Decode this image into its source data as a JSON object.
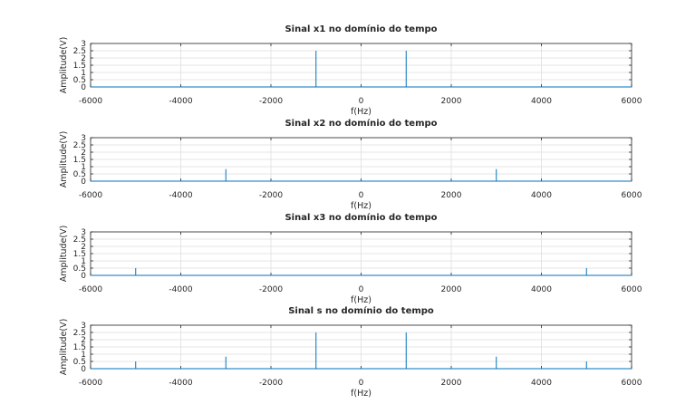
{
  "chart_data": [
    {
      "type": "stem",
      "title": "Sinal x1 no domínio do tempo",
      "xlabel": "f(Hz)",
      "ylabel": "Amplitude(V)",
      "xlim": [
        -6000,
        6000
      ],
      "ylim": [
        0,
        3
      ],
      "xticks": [
        "-6000",
        "-4000",
        "-2000",
        "0",
        "2000",
        "4000",
        "6000"
      ],
      "yticks": [
        "0",
        "0.5",
        "1",
        "1.5",
        "2",
        "2.5",
        "3"
      ],
      "grid": true,
      "color": "#0072bd",
      "x": [
        -1000,
        1000
      ],
      "y": [
        2.5,
        2.5
      ]
    },
    {
      "type": "stem",
      "title": "Sinal x2 no domínio do tempo",
      "xlabel": "f(Hz)",
      "ylabel": "Amplitude(V)",
      "xlim": [
        -6000,
        6000
      ],
      "ylim": [
        0,
        3
      ],
      "xticks": [
        "-6000",
        "-4000",
        "-2000",
        "0",
        "2000",
        "4000",
        "6000"
      ],
      "yticks": [
        "0",
        "0.5",
        "1",
        "1.5",
        "2",
        "2.5",
        "3"
      ],
      "grid": true,
      "color": "#0072bd",
      "x": [
        -3000,
        3000
      ],
      "y": [
        0.83,
        0.83
      ]
    },
    {
      "type": "stem",
      "title": "Sinal x3 no domínio do tempo",
      "xlabel": "f(Hz)",
      "ylabel": "Amplitude(V)",
      "xlim": [
        -6000,
        6000
      ],
      "ylim": [
        0,
        3
      ],
      "xticks": [
        "-6000",
        "-4000",
        "-2000",
        "0",
        "2000",
        "4000",
        "6000"
      ],
      "yticks": [
        "0",
        "0.5",
        "1",
        "1.5",
        "2",
        "2.5",
        "3"
      ],
      "grid": true,
      "color": "#0072bd",
      "x": [
        -5000,
        5000
      ],
      "y": [
        0.5,
        0.5
      ]
    },
    {
      "type": "stem",
      "title": "Sinal s no domínio do tempo",
      "xlabel": "f(Hz)",
      "ylabel": "Amplitude(V)",
      "xlim": [
        -6000,
        6000
      ],
      "ylim": [
        0,
        3
      ],
      "xticks": [
        "-6000",
        "-4000",
        "-2000",
        "0",
        "2000",
        "4000",
        "6000"
      ],
      "yticks": [
        "0",
        "0.5",
        "1",
        "1.5",
        "2",
        "2.5",
        "3"
      ],
      "grid": true,
      "color": "#0072bd",
      "x": [
        -5000,
        -3000,
        -1000,
        1000,
        3000,
        5000
      ],
      "y": [
        0.5,
        0.83,
        2.5,
        2.5,
        0.83,
        0.5
      ]
    }
  ]
}
